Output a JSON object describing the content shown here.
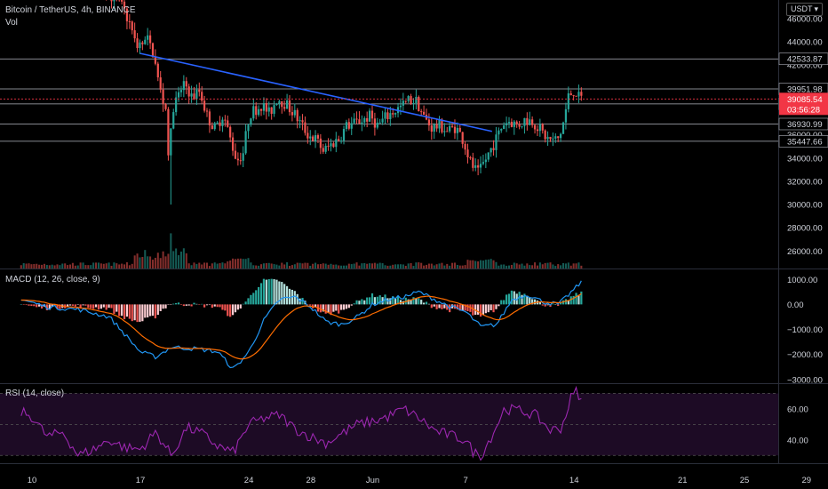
{
  "header": {
    "title": "Bitcoin / TetherUS, 4h, BINANCE",
    "vol_label": "Vol",
    "currency": "USDT",
    "currency_chevron": "chevron-down-icon"
  },
  "colors": {
    "up": "#26a69a",
    "down": "#ef5350",
    "trendline": "#2962ff",
    "macd": "#2196f3",
    "signal": "#ff6d00",
    "rsi": "#9c27b0",
    "rsi_band": "#1d0b25",
    "price_tag": "#f23645"
  },
  "price_panel": {
    "ylim": [
      24500,
      47600
    ],
    "ticks": [
      26000,
      28000,
      30000,
      32000,
      34000,
      36000,
      38000,
      40000,
      42000,
      44000,
      46000
    ],
    "tick_labels": [
      "26000.00",
      "28000.00",
      "30000.00",
      "32000.00",
      "34000.00",
      "36000.00",
      "38000.00",
      "40000.00",
      "42000.00",
      "44000.00",
      "46000.00"
    ],
    "horizontal_levels": [
      {
        "value": 42533.87,
        "label": "42533.87"
      },
      {
        "value": 39951.98,
        "label": "39951.98"
      },
      {
        "value": 38662.17,
        "label": "38662.17"
      },
      {
        "value": 36930.99,
        "label": "36930.99"
      },
      {
        "value": 35447.66,
        "label": "35447.66"
      }
    ],
    "current_price": {
      "value": 39085.54,
      "label": "39085.54",
      "countdown": "03:56:28"
    },
    "trendline": {
      "start": {
        "day": 17.0,
        "price": 43000
      },
      "end": {
        "day": 39.7,
        "price": 36300
      }
    }
  },
  "macd_panel": {
    "label": "MACD (12, 26, close, 9)",
    "ylim": [
      -3150,
      1400
    ],
    "ticks": [
      1000,
      0,
      -1000,
      -2000,
      -3000
    ],
    "tick_labels": [
      "1000.00",
      "0.00",
      "−1000.00",
      "−2000.00",
      "−3000.00"
    ]
  },
  "rsi_panel": {
    "label": "RSI (14, close)",
    "ylim": [
      25,
      76
    ],
    "band": [
      30,
      70
    ],
    "ticks": [
      60,
      40
    ],
    "tick_labels": [
      "60.00",
      "40.00"
    ]
  },
  "x_axis": {
    "ticks": [
      {
        "day": 10,
        "label": "10"
      },
      {
        "day": 17,
        "label": "17"
      },
      {
        "day": 24,
        "label": "24"
      },
      {
        "day": 28,
        "label": "28"
      },
      {
        "day": 32,
        "label": "Jun"
      },
      {
        "day": 38,
        "label": "7"
      },
      {
        "day": 45,
        "label": "14"
      },
      {
        "day": 52,
        "label": "21"
      },
      {
        "day": 56,
        "label": "25"
      },
      {
        "day": 60,
        "label": "29"
      }
    ]
  },
  "chart_data": {
    "type": "candlestick",
    "title": "Bitcoin / TetherUS, 4h, BINANCE",
    "x_unit": "days (May 10 = 10, Jun 1 = 32, Jun 14 = 45)",
    "bars_per_day": 6,
    "start_day": 9.3,
    "end_day": 45.5,
    "anchors": [
      [
        9.3,
        57000
      ],
      [
        10.0,
        56000
      ],
      [
        11.0,
        53500
      ],
      [
        12.0,
        54000
      ],
      [
        13.0,
        50000
      ],
      [
        14.0,
        49500
      ],
      [
        15.0,
        48500
      ],
      [
        15.5,
        47500
      ],
      [
        16.0,
        47000
      ],
      [
        16.5,
        45500
      ],
      [
        16.8,
        44000
      ],
      [
        17.2,
        43600
      ],
      [
        17.6,
        44200
      ],
      [
        18.0,
        43000
      ],
      [
        18.4,
        40000
      ],
      [
        18.8,
        38200
      ],
      [
        19.0,
        34000
      ],
      [
        19.3,
        38500
      ],
      [
        19.7,
        39500
      ],
      [
        20.0,
        40600
      ],
      [
        20.5,
        39200
      ],
      [
        21.0,
        39800
      ],
      [
        21.5,
        37500
      ],
      [
        22.0,
        36500
      ],
      [
        22.5,
        37800
      ],
      [
        23.0,
        35500
      ],
      [
        23.4,
        33800
      ],
      [
        23.8,
        34500
      ],
      [
        24.2,
        37800
      ],
      [
        24.6,
        38200
      ],
      [
        25.0,
        38600
      ],
      [
        25.5,
        37800
      ],
      [
        26.0,
        39200
      ],
      [
        26.5,
        38700
      ],
      [
        27.0,
        38000
      ],
      [
        27.5,
        37000
      ],
      [
        28.0,
        36000
      ],
      [
        28.5,
        35600
      ],
      [
        29.0,
        34600
      ],
      [
        29.5,
        35200
      ],
      [
        30.0,
        35700
      ],
      [
        30.5,
        36800
      ],
      [
        31.0,
        37000
      ],
      [
        31.5,
        37300
      ],
      [
        32.0,
        37600
      ],
      [
        32.5,
        36800
      ],
      [
        33.0,
        37500
      ],
      [
        33.5,
        38000
      ],
      [
        34.0,
        38400
      ],
      [
        34.5,
        39000
      ],
      [
        35.0,
        38900
      ],
      [
        35.5,
        37400
      ],
      [
        36.0,
        36600
      ],
      [
        36.5,
        36800
      ],
      [
        37.0,
        36300
      ],
      [
        37.5,
        36700
      ],
      [
        38.0,
        35600
      ],
      [
        38.5,
        33500
      ],
      [
        39.0,
        32600
      ],
      [
        39.3,
        33500
      ],
      [
        39.8,
        34800
      ],
      [
        40.2,
        35800
      ],
      [
        40.6,
        37000
      ],
      [
        41.0,
        37200
      ],
      [
        41.5,
        36800
      ],
      [
        42.0,
        37300
      ],
      [
        42.5,
        37200
      ],
      [
        43.0,
        36400
      ],
      [
        43.4,
        35700
      ],
      [
        43.8,
        35500
      ],
      [
        44.2,
        35700
      ],
      [
        44.5,
        37200
      ],
      [
        44.8,
        39300
      ],
      [
        45.2,
        39900
      ],
      [
        45.5,
        39100
      ]
    ],
    "macd_anchors": [
      [
        9.3,
        200
      ],
      [
        11.0,
        -100
      ],
      [
        13.0,
        -200
      ],
      [
        15.0,
        -500
      ],
      [
        16.0,
        -1200
      ],
      [
        17.0,
        -1900
      ],
      [
        18.0,
        -2100
      ],
      [
        19.0,
        -1700
      ],
      [
        21.0,
        -1800
      ],
      [
        22.0,
        -1900
      ],
      [
        23.0,
        -2600
      ],
      [
        24.0,
        -1900
      ],
      [
        25.0,
        -600
      ],
      [
        26.0,
        200
      ],
      [
        27.0,
        300
      ],
      [
        28.0,
        -100
      ],
      [
        29.0,
        -700
      ],
      [
        30.0,
        -800
      ],
      [
        31.0,
        -500
      ],
      [
        32.0,
        0
      ],
      [
        33.0,
        200
      ],
      [
        34.0,
        300
      ],
      [
        35.0,
        500
      ],
      [
        36.0,
        200
      ],
      [
        37.0,
        -100
      ],
      [
        38.0,
        -300
      ],
      [
        39.0,
        -900
      ],
      [
        40.0,
        -800
      ],
      [
        41.0,
        200
      ],
      [
        42.0,
        400
      ],
      [
        43.0,
        100
      ],
      [
        44.0,
        0
      ],
      [
        45.0,
        600
      ],
      [
        45.5,
        900
      ]
    ],
    "rsi_anchors": [
      [
        9.3,
        58
      ],
      [
        10.0,
        55
      ],
      [
        11.0,
        42
      ],
      [
        12.0,
        45
      ],
      [
        13.0,
        30
      ],
      [
        14.0,
        34
      ],
      [
        15.0,
        40
      ],
      [
        16.0,
        35
      ],
      [
        17.0,
        34
      ],
      [
        18.0,
        45
      ],
      [
        19.0,
        30
      ],
      [
        20.0,
        48
      ],
      [
        21.0,
        44
      ],
      [
        22.0,
        36
      ],
      [
        23.0,
        32
      ],
      [
        24.0,
        50
      ],
      [
        25.0,
        54
      ],
      [
        26.0,
        56
      ],
      [
        27.0,
        47
      ],
      [
        28.0,
        42
      ],
      [
        29.0,
        38
      ],
      [
        30.0,
        44
      ],
      [
        31.0,
        50
      ],
      [
        32.0,
        52
      ],
      [
        33.0,
        55
      ],
      [
        34.0,
        60
      ],
      [
        35.0,
        54
      ],
      [
        36.0,
        46
      ],
      [
        37.0,
        43
      ],
      [
        38.0,
        40
      ],
      [
        38.5,
        32
      ],
      [
        39.0,
        30
      ],
      [
        39.8,
        45
      ],
      [
        40.5,
        60
      ],
      [
        41.5,
        59
      ],
      [
        42.5,
        56
      ],
      [
        43.5,
        46
      ],
      [
        44.2,
        48
      ],
      [
        44.8,
        67
      ],
      [
        45.2,
        72
      ],
      [
        45.5,
        64
      ]
    ]
  }
}
